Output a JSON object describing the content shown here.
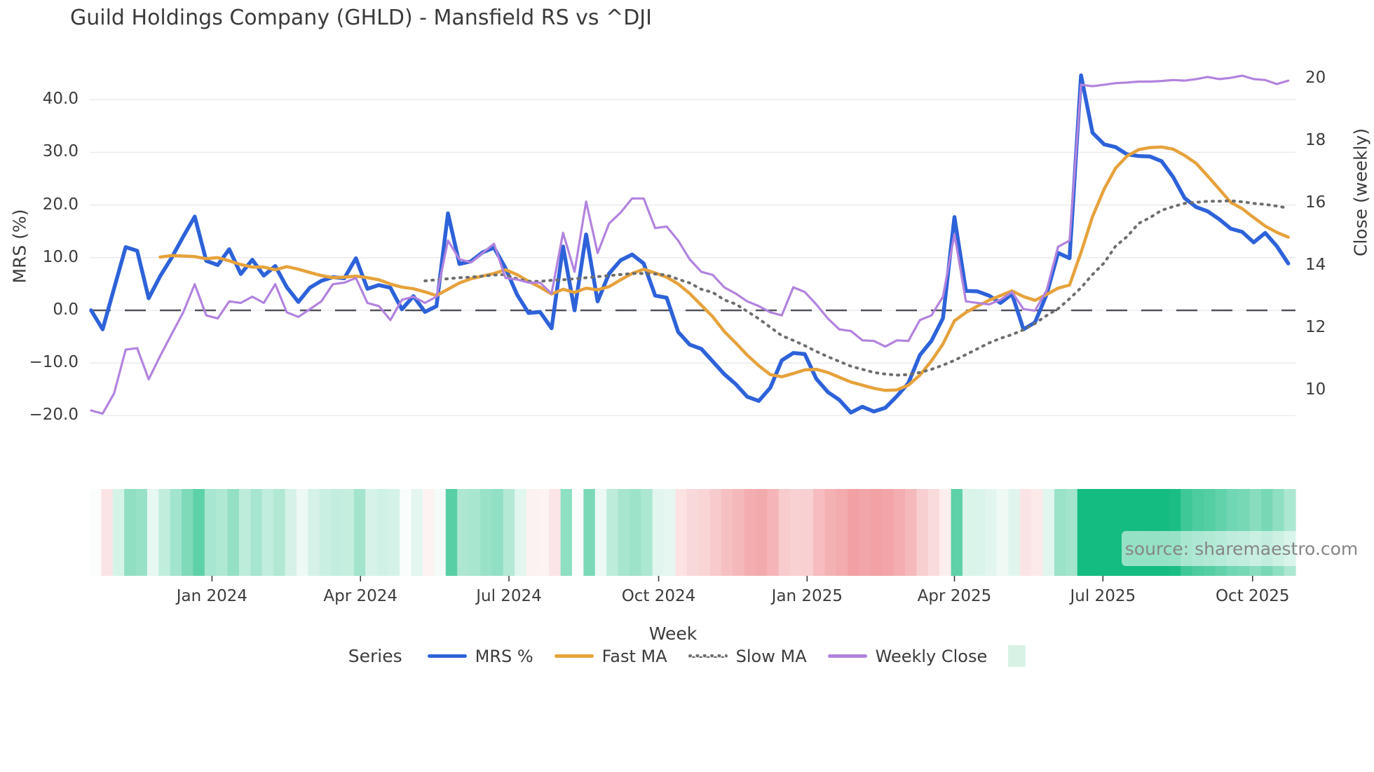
{
  "title": "Guild Holdings Company (GHLD) - Mansfield RS vs ^DJI",
  "source_text": "source: sharemaestro.com",
  "xlabel": "Week",
  "legend": {
    "title": "Series",
    "items": [
      {
        "label": "MRS %",
        "color": "#2d62d9",
        "style": "solid"
      },
      {
        "label": "Fast MA",
        "color": "#e6a23c",
        "style": "solid"
      },
      {
        "label": "Slow MA",
        "color": "#6e6e6e",
        "style": "dotted"
      },
      {
        "label": "Weekly Close",
        "color": "#b283de",
        "style": "solid"
      },
      {
        "label": "",
        "color": "#d9f2e6",
        "style": "square"
      }
    ]
  },
  "chart_data": {
    "type": "line",
    "title": "Guild Holdings Company (GHLD) - Mansfield RS vs ^DJI",
    "xlabel": "Week",
    "grid": true,
    "n_weeks": 105,
    "x_axis": {
      "tick_weeks": [
        10.5,
        23.4,
        36.3,
        49.3,
        62.2,
        75.0,
        87.9,
        100.9
      ],
      "tick_labels": [
        "Jan 2024",
        "Apr 2024",
        "Jul 2024",
        "Oct 2024",
        "Jan 2025",
        "Apr 2025",
        "Jul 2025",
        "Oct 2025"
      ]
    },
    "left_axis": {
      "label": "MRS (%)",
      "tick_values": [
        40,
        30,
        20,
        10,
        0,
        -10,
        -20
      ],
      "tick_labels": [
        "40.0",
        "30.0",
        "20.0",
        "10.0",
        "0.0",
        "−10.0",
        "−20.0"
      ],
      "lim": [
        -24.9,
        46.3
      ]
    },
    "right_axis": {
      "label": "Close (weekly)",
      "tick_values": [
        20,
        18,
        16,
        14,
        12,
        10
      ],
      "tick_labels": [
        "20",
        "18",
        "16",
        "14",
        "12",
        "10"
      ],
      "lim": [
        8.4,
        20.4
      ]
    },
    "zero_dashed_line": 0,
    "series": [
      {
        "name": "MRS %",
        "axis": "left",
        "color": "#2d62d9",
        "width": 5.5,
        "style": "solid",
        "values": [
          0.0,
          -3.6,
          4.2,
          12.0,
          11.3,
          2.3,
          6.5,
          10.0,
          14.0,
          17.8,
          9.4,
          8.6,
          11.6,
          6.9,
          9.6,
          6.6,
          8.4,
          4.4,
          1.6,
          4.3,
          5.6,
          6.3,
          6.1,
          9.9,
          4.1,
          4.8,
          4.3,
          0.2,
          2.7,
          -0.3,
          0.8,
          18.4,
          8.8,
          9.3,
          11.0,
          11.9,
          8.0,
          3.0,
          -0.5,
          -0.3,
          -3.4,
          12.1,
          0.0,
          14.4,
          1.7,
          7.0,
          9.5,
          10.6,
          8.9,
          2.8,
          2.4,
          -4.1,
          -6.5,
          -7.3,
          -9.7,
          -12.1,
          -14.0,
          -16.4,
          -17.2,
          -14.7,
          -9.5,
          -8.1,
          -8.3,
          -13.0,
          -15.5,
          -17.0,
          -19.4,
          -18.3,
          -19.2,
          -18.5,
          -16.3,
          -13.8,
          -8.5,
          -5.8,
          -1.5,
          17.7,
          3.7,
          3.6,
          2.8,
          1.4,
          3.1,
          -3.6,
          -2.3,
          3.0,
          10.9,
          9.9,
          44.6,
          33.7,
          31.5,
          31.0,
          29.6,
          29.3,
          29.2,
          28.3,
          25.3,
          21.3,
          19.6,
          18.8,
          17.3,
          15.5,
          14.9,
          12.9,
          14.7,
          12.2,
          8.9
        ]
      },
      {
        "name": "Fast MA",
        "axis": "left",
        "color": "#e6a23c",
        "width": 4.5,
        "style": "solid",
        "values": [
          null,
          null,
          null,
          null,
          null,
          null,
          10.1,
          10.4,
          10.3,
          10.2,
          9.8,
          10.0,
          9.4,
          8.7,
          8.2,
          8.2,
          7.7,
          8.3,
          7.8,
          7.2,
          6.6,
          6.2,
          6.3,
          6.5,
          6.2,
          5.8,
          5.0,
          4.4,
          4.1,
          3.5,
          2.8,
          4.0,
          5.2,
          6.0,
          6.5,
          7.0,
          7.7,
          6.8,
          5.5,
          4.4,
          3.1,
          4.0,
          3.4,
          4.2,
          3.9,
          4.5,
          5.8,
          7.0,
          7.8,
          7.1,
          6.3,
          5.0,
          3.2,
          1.0,
          -1.2,
          -4.0,
          -6.2,
          -8.5,
          -10.5,
          -12.2,
          -12.6,
          -12.0,
          -11.3,
          -11.2,
          -11.8,
          -12.7,
          -13.6,
          -14.2,
          -14.8,
          -15.2,
          -15.1,
          -14.2,
          -12.3,
          -9.6,
          -6.4,
          -2.0,
          -0.4,
          0.8,
          1.9,
          2.8,
          3.7,
          2.6,
          1.9,
          3.0,
          4.2,
          4.8,
          11.0,
          17.8,
          23.0,
          27.0,
          29.3,
          30.5,
          30.9,
          31.0,
          30.6,
          29.4,
          27.9,
          25.5,
          23.0,
          20.5,
          19.3,
          17.6,
          16.0,
          14.8,
          13.9
        ]
      },
      {
        "name": "Slow MA",
        "axis": "left",
        "color": "#6e6e6e",
        "width": 4,
        "style": "dotted",
        "values": [
          null,
          null,
          null,
          null,
          null,
          null,
          null,
          null,
          null,
          null,
          null,
          null,
          null,
          null,
          null,
          null,
          null,
          null,
          null,
          null,
          null,
          null,
          null,
          null,
          null,
          null,
          null,
          null,
          null,
          5.6,
          5.8,
          6.0,
          6.2,
          6.3,
          6.5,
          6.7,
          6.8,
          6.0,
          5.5,
          5.5,
          5.7,
          5.8,
          6.0,
          6.2,
          6.4,
          6.6,
          6.8,
          7.0,
          7.0,
          6.9,
          6.7,
          5.9,
          5.2,
          4.0,
          3.4,
          2.0,
          1.2,
          -0.2,
          -1.6,
          -3.2,
          -4.8,
          -5.7,
          -6.7,
          -7.8,
          -8.8,
          -9.7,
          -10.6,
          -11.2,
          -11.8,
          -12.1,
          -12.3,
          -12.2,
          -11.8,
          -11.2,
          -10.4,
          -9.5,
          -8.4,
          -7.3,
          -6.2,
          -5.3,
          -4.6,
          -3.7,
          -2.5,
          -1.0,
          0.3,
          2.2,
          4.3,
          6.8,
          9.0,
          12.2,
          14.0,
          16.5,
          17.6,
          19.0,
          19.7,
          20.3,
          20.5,
          20.7,
          20.7,
          20.8,
          20.6,
          20.3,
          20.1,
          19.8,
          19.4
        ]
      },
      {
        "name": "Weekly Close",
        "axis": "right",
        "color": "#b283de",
        "width": 3.2,
        "style": "solid",
        "values": [
          9.35,
          9.25,
          9.9,
          11.3,
          11.35,
          10.35,
          11.1,
          11.8,
          12.5,
          13.4,
          12.4,
          12.3,
          12.85,
          12.8,
          13.0,
          12.8,
          13.4,
          12.5,
          12.35,
          12.6,
          12.85,
          13.4,
          13.45,
          13.6,
          12.8,
          12.7,
          12.25,
          12.9,
          13.0,
          12.8,
          13.0,
          14.8,
          14.2,
          14.1,
          14.4,
          14.7,
          13.6,
          13.55,
          13.45,
          13.45,
          13.1,
          15.05,
          13.8,
          16.05,
          14.4,
          15.35,
          15.7,
          16.15,
          16.15,
          15.2,
          15.25,
          14.8,
          14.2,
          13.8,
          13.7,
          13.3,
          13.1,
          12.85,
          12.7,
          12.5,
          12.4,
          13.3,
          13.15,
          12.75,
          12.3,
          11.95,
          11.9,
          11.6,
          11.58,
          11.4,
          11.6,
          11.58,
          12.25,
          12.4,
          13.0,
          15.0,
          12.85,
          12.8,
          12.75,
          12.9,
          13.15,
          12.6,
          12.55,
          13.2,
          14.6,
          14.8,
          19.8,
          19.75,
          19.8,
          19.85,
          19.87,
          19.9,
          19.9,
          19.92,
          19.95,
          19.93,
          19.98,
          20.05,
          19.98,
          20.02,
          20.09,
          19.98,
          19.95,
          19.82,
          19.93
        ]
      }
    ],
    "heatmap": {
      "description": "weekly strip colored by MRS % value",
      "based_on": "MRS %",
      "positive_color": "#14bc81",
      "negative_color": "#ee8489",
      "neutral_color": "#fbfdfc",
      "saturation_abs_value": 26
    }
  }
}
